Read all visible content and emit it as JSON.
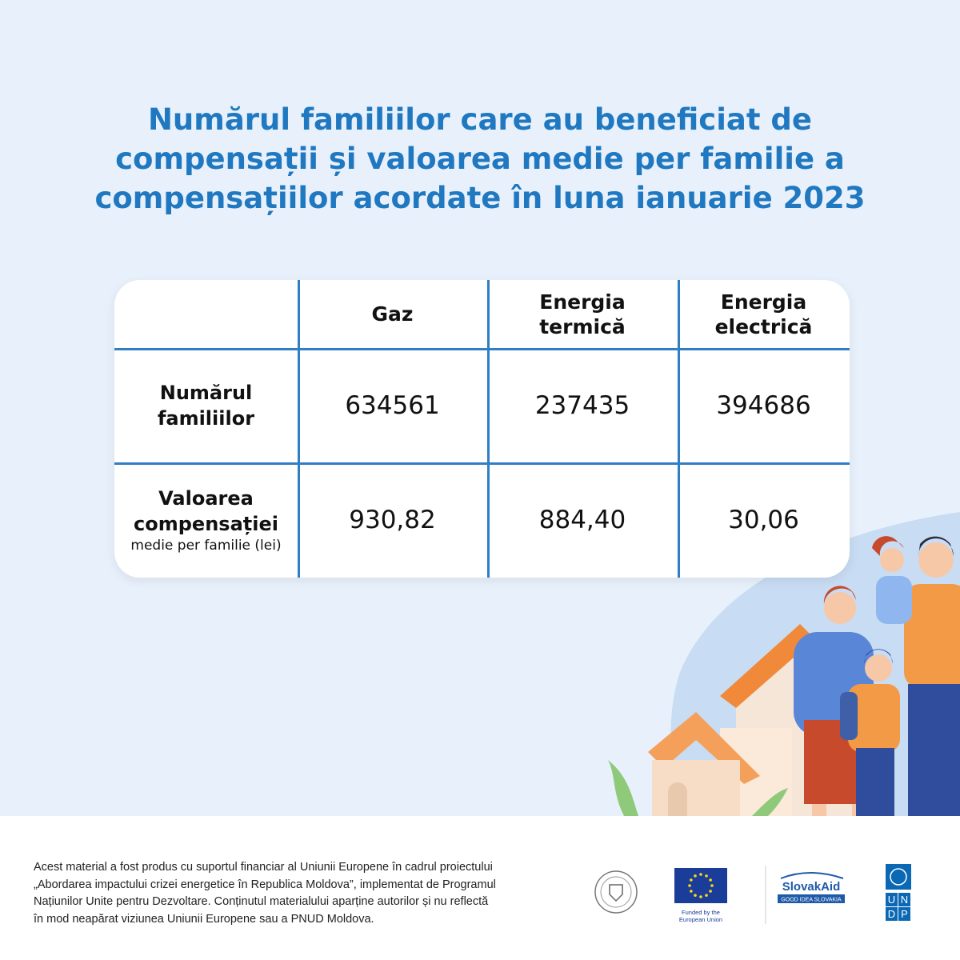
{
  "title": [
    "Numărul familiilor care au beneficiat de",
    "compensații și valoarea medie per familie a",
    "compensațiilor acordate în luna ianuarie 2023"
  ],
  "table": {
    "headers": [
      [],
      [
        "Gaz"
      ],
      [
        "Energia",
        "termică"
      ],
      [
        "Energia",
        "electrică"
      ]
    ],
    "rows": [
      {
        "label": [
          "Numărul",
          "familiilor"
        ],
        "cells": [
          "634561",
          "237435",
          "394686"
        ]
      },
      {
        "label": [
          "Valoarea",
          "compensației"
        ],
        "note": "medie per familie (lei)",
        "cells": [
          "930,82",
          "884,40",
          "30,06"
        ]
      }
    ]
  },
  "footer": {
    "text": [
      "Acest material a fost produs cu suportul financiar al Uniunii Europene în cadrul proiectului",
      "„Abordarea impactului crizei energetice în Republica Moldova”, implementat de Programul",
      "Națiunilor Unite pentru Dezvoltare. Conținutul materialului aparține autorilor și nu reflectă",
      "în mod neapărat viziunea Uniunii Europene sau a PNUD Moldova."
    ],
    "eu": [
      "Funded by the",
      "European Union"
    ],
    "slovakaid": {
      "name": "SlovakAid",
      "tagline": "GOOD IDEA SLOVAKIA"
    },
    "undp": [
      "U",
      "N",
      "D",
      "P"
    ]
  }
}
